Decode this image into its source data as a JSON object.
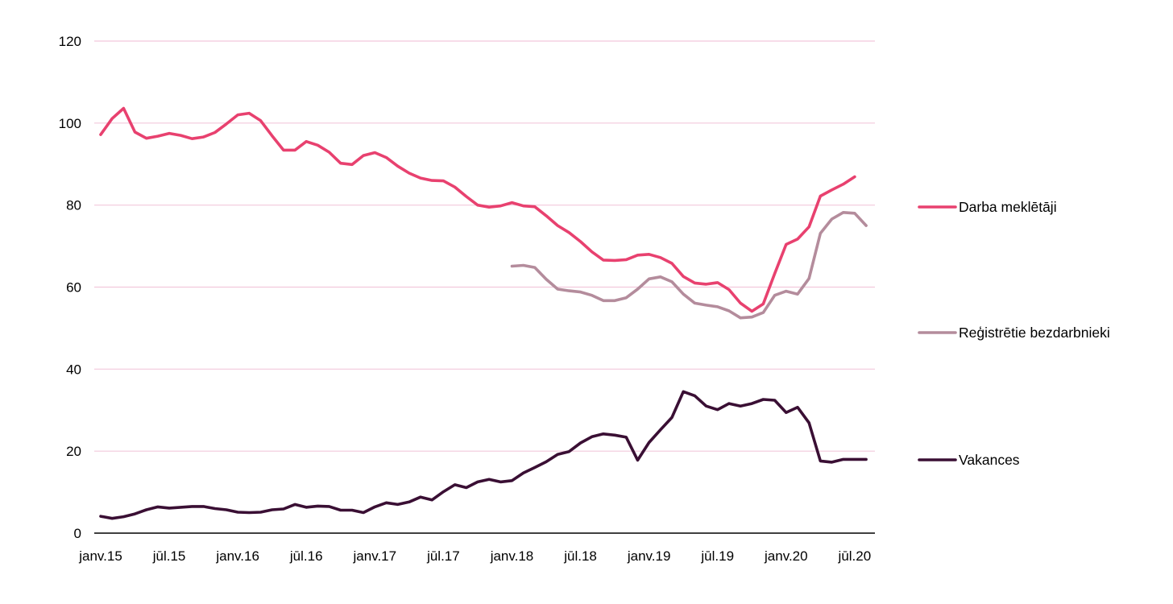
{
  "chart_data": {
    "type": "line",
    "title": "",
    "xlabel": "",
    "ylabel": "",
    "ylim": [
      0,
      120
    ],
    "y_ticks": [
      0,
      20,
      40,
      60,
      80,
      100,
      120
    ],
    "grid": true,
    "legend_position": "right",
    "x": [
      "2015-01",
      "2015-02",
      "2015-03",
      "2015-04",
      "2015-05",
      "2015-06",
      "2015-07",
      "2015-08",
      "2015-09",
      "2015-10",
      "2015-11",
      "2015-12",
      "2016-01",
      "2016-02",
      "2016-03",
      "2016-04",
      "2016-05",
      "2016-06",
      "2016-07",
      "2016-08",
      "2016-09",
      "2016-10",
      "2016-11",
      "2016-12",
      "2017-01",
      "2017-02",
      "2017-03",
      "2017-04",
      "2017-05",
      "2017-06",
      "2017-07",
      "2017-08",
      "2017-09",
      "2017-10",
      "2017-11",
      "2017-12",
      "2018-01",
      "2018-02",
      "2018-03",
      "2018-04",
      "2018-05",
      "2018-06",
      "2018-07",
      "2018-08",
      "2018-09",
      "2018-10",
      "2018-11",
      "2018-12",
      "2019-01",
      "2019-02",
      "2019-03",
      "2019-04",
      "2019-05",
      "2019-06",
      "2019-07",
      "2019-08",
      "2019-09",
      "2019-10",
      "2019-11",
      "2019-12",
      "2020-01",
      "2020-02",
      "2020-03",
      "2020-04",
      "2020-05",
      "2020-06",
      "2020-07",
      "2020-08"
    ],
    "x_tick_labels": [
      {
        "x": "2015-01",
        "label": "janv.15"
      },
      {
        "x": "2015-07",
        "label": "jūl.15"
      },
      {
        "x": "2016-01",
        "label": "janv.16"
      },
      {
        "x": "2016-07",
        "label": "jūl.16"
      },
      {
        "x": "2017-01",
        "label": "janv.17"
      },
      {
        "x": "2017-07",
        "label": "jūl.17"
      },
      {
        "x": "2018-01",
        "label": "janv.18"
      },
      {
        "x": "2018-07",
        "label": "jūl.18"
      },
      {
        "x": "2019-01",
        "label": "janv.19"
      },
      {
        "x": "2019-07",
        "label": "jūl.19"
      },
      {
        "x": "2020-01",
        "label": "janv.20"
      },
      {
        "x": "2020-07",
        "label": "jūl.20"
      }
    ],
    "colors": {
      "grid": "#f2c8dc",
      "axis": "#000000"
    },
    "series": [
      {
        "name": "Darba meklētāji",
        "color": "#e8416f",
        "values": [
          97.2,
          101.1,
          103.6,
          97.8,
          96.3,
          96.8,
          97.5,
          97.0,
          96.2,
          96.6,
          97.7,
          99.8,
          102.0,
          102.4,
          100.6,
          96.9,
          93.4,
          93.4,
          95.5,
          94.6,
          92.9,
          90.2,
          89.9,
          92.1,
          92.8,
          91.6,
          89.5,
          87.8,
          86.6,
          86.0,
          85.9,
          84.4,
          82.1,
          80.0,
          79.5,
          79.8,
          80.6,
          79.8,
          79.6,
          77.4,
          75.0,
          73.3,
          71.1,
          68.6,
          66.6,
          66.5,
          66.7,
          67.8,
          68.0,
          67.2,
          65.8,
          62.6,
          61.0,
          60.7,
          61.1,
          59.4,
          56.1,
          54.1,
          55.9,
          63.3,
          70.4,
          71.7,
          74.7,
          82.2,
          83.7,
          85.1,
          86.9,
          null
        ]
      },
      {
        "name": "Reģistrētie bezdarbnieki",
        "color": "#b48c9c",
        "values": [
          null,
          null,
          null,
          null,
          null,
          null,
          null,
          null,
          null,
          null,
          null,
          null,
          null,
          null,
          null,
          null,
          null,
          null,
          null,
          null,
          null,
          null,
          null,
          null,
          null,
          null,
          null,
          null,
          null,
          null,
          null,
          null,
          null,
          null,
          null,
          null,
          65.1,
          65.3,
          64.8,
          61.9,
          59.5,
          59.1,
          58.8,
          58.0,
          56.7,
          56.7,
          57.4,
          59.5,
          62.0,
          62.5,
          61.3,
          58.3,
          56.1,
          55.6,
          55.2,
          54.2,
          52.5,
          52.7,
          53.8,
          58.0,
          59.0,
          58.3,
          62.1,
          73.1,
          76.6,
          78.2,
          78.0,
          75.0
        ]
      },
      {
        "name": "Vakances",
        "color": "#3a0f34",
        "values": [
          4.1,
          3.6,
          4.0,
          4.7,
          5.7,
          6.4,
          6.1,
          6.3,
          6.5,
          6.5,
          6.0,
          5.7,
          5.1,
          5.0,
          5.1,
          5.7,
          5.9,
          7.0,
          6.3,
          6.6,
          6.5,
          5.6,
          5.6,
          5.0,
          6.4,
          7.4,
          7.0,
          7.6,
          8.8,
          8.1,
          10.1,
          11.8,
          11.1,
          12.5,
          13.1,
          12.5,
          12.8,
          14.7,
          16.0,
          17.4,
          19.2,
          19.9,
          22.0,
          23.5,
          24.2,
          23.9,
          23.4,
          17.8,
          22.1,
          25.2,
          28.2,
          34.5,
          33.5,
          31.0,
          30.1,
          31.6,
          31.0,
          31.6,
          32.6,
          32.4,
          29.4,
          30.7,
          26.9,
          17.6,
          17.3,
          18.0,
          18.0,
          18.0
        ]
      }
    ]
  }
}
